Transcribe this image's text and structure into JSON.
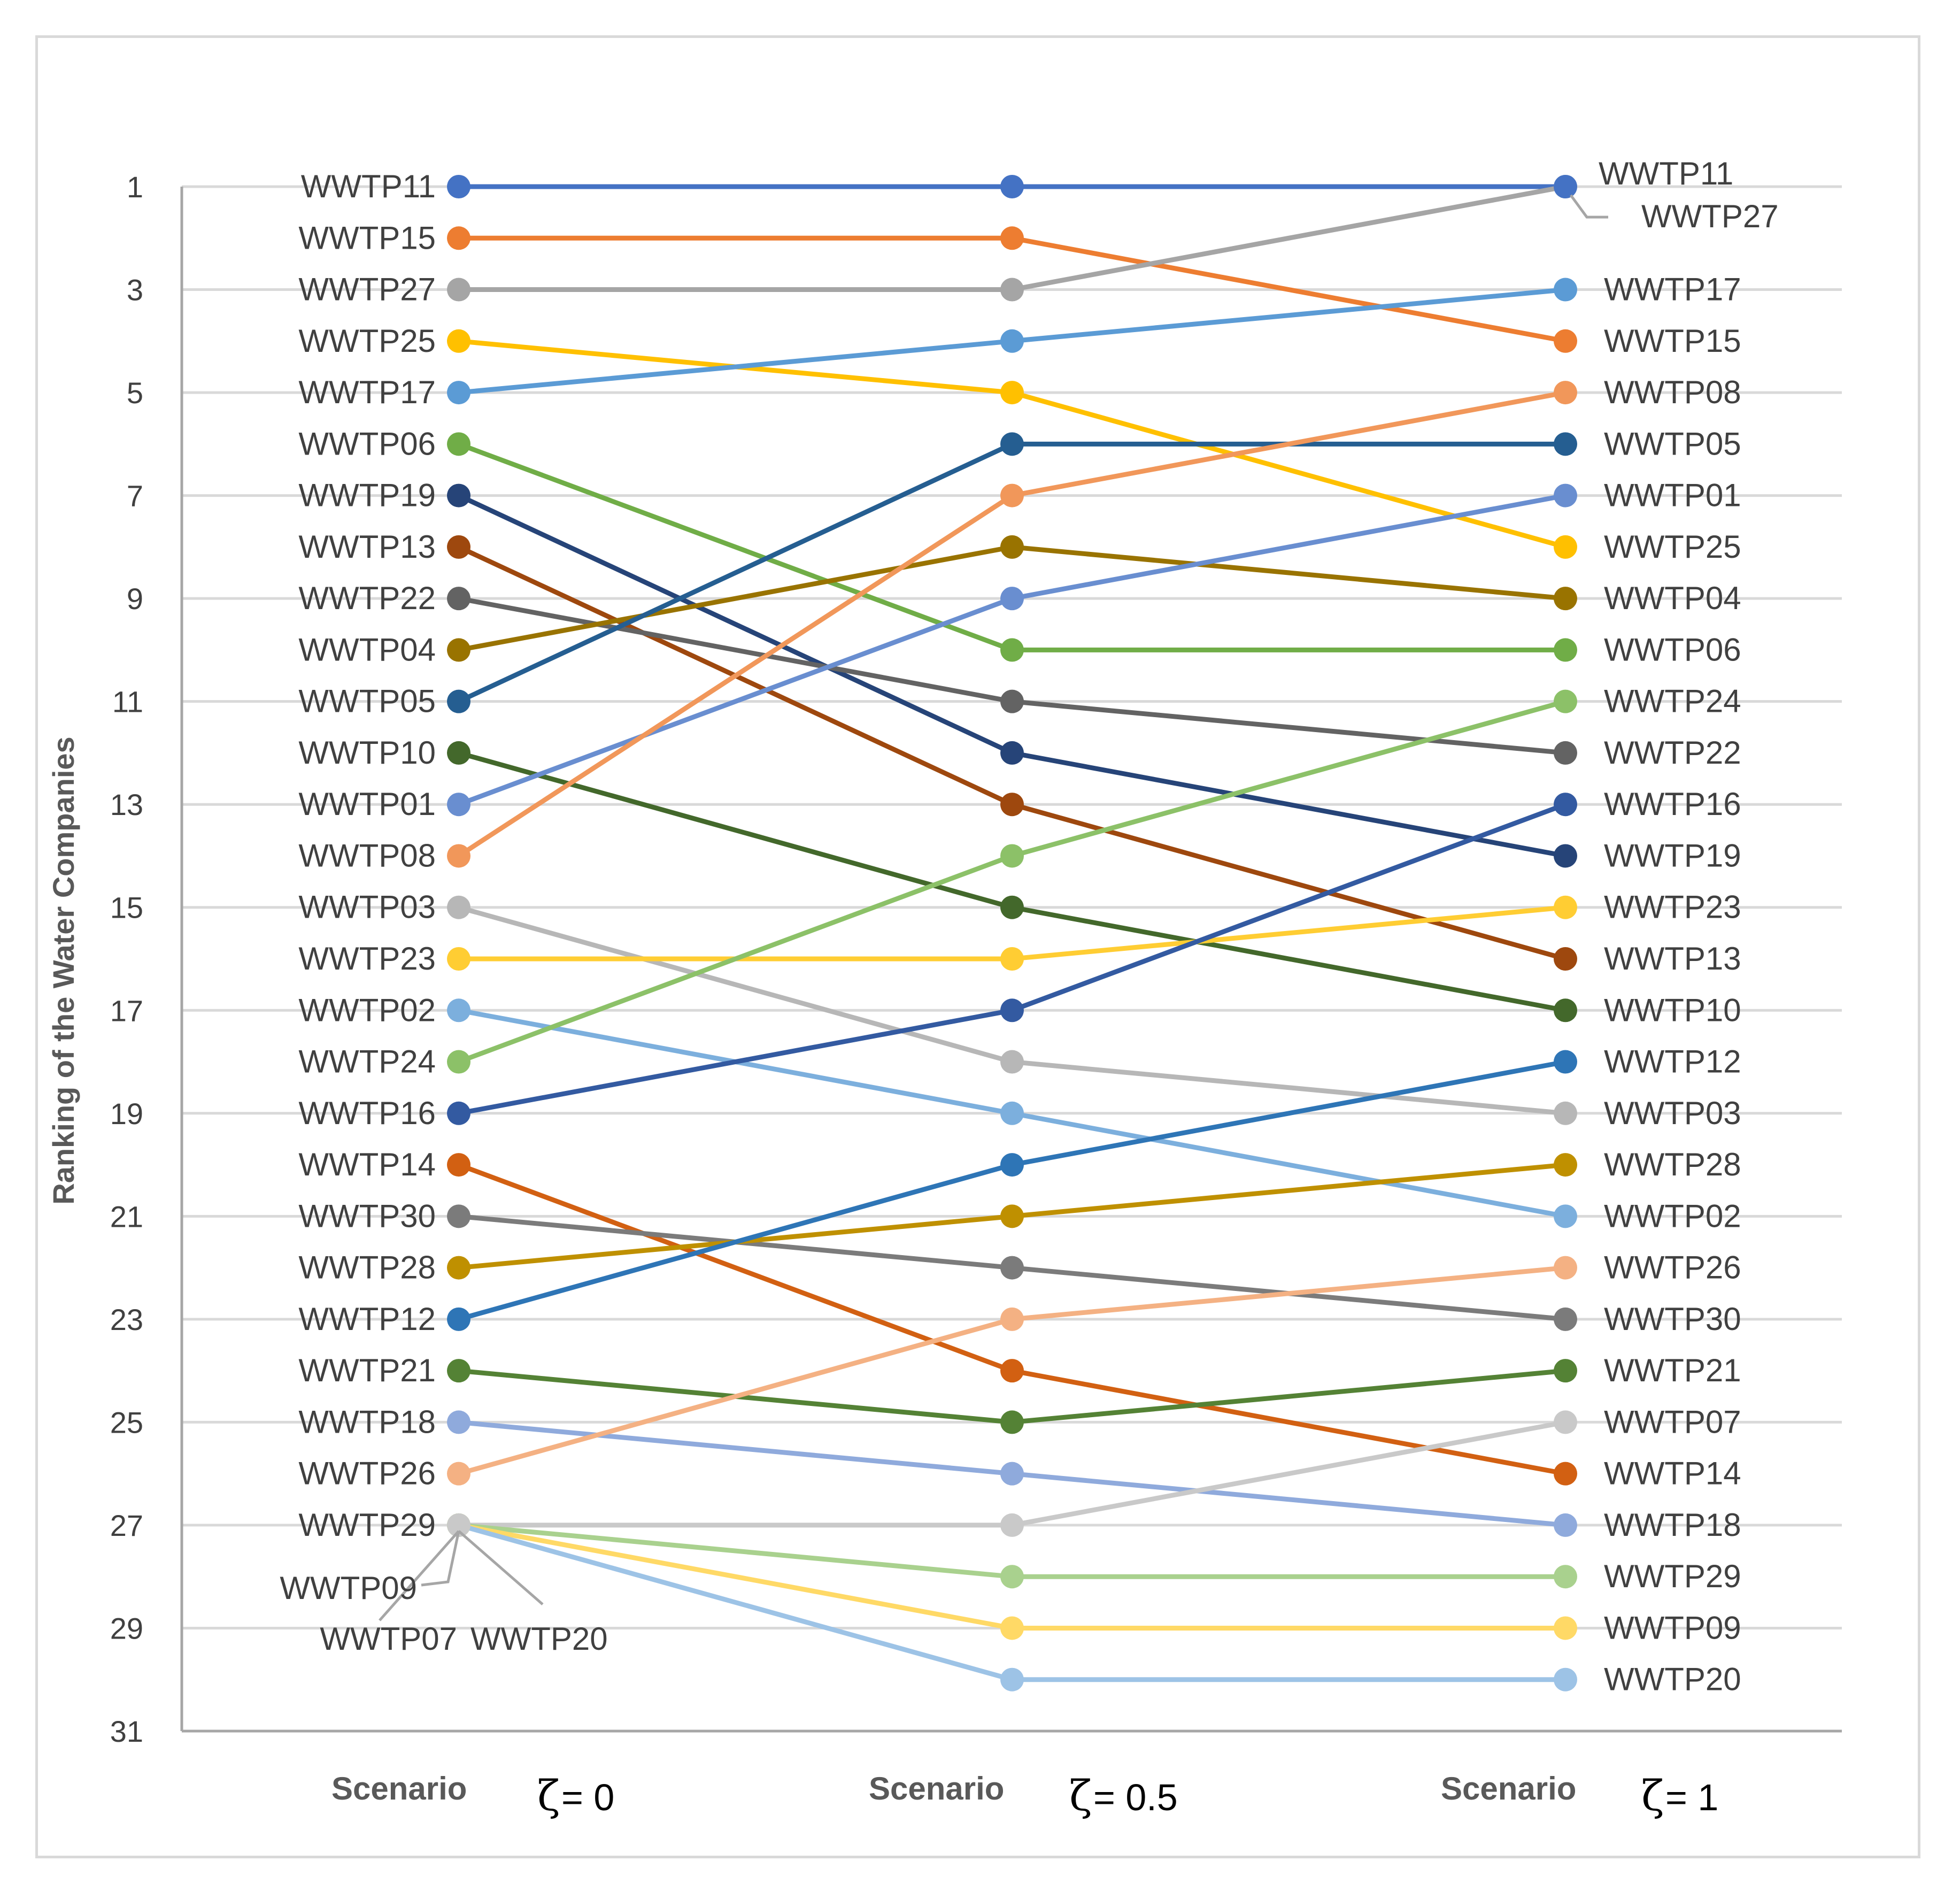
{
  "chart_data": {
    "type": "line",
    "ylabel": "Ranking of the Water Companies",
    "ylim": [
      1,
      31
    ],
    "y_inverted": true,
    "y_ticks": [
      1,
      3,
      5,
      7,
      9,
      11,
      13,
      15,
      17,
      19,
      21,
      23,
      25,
      27,
      29,
      31
    ],
    "grid": true,
    "scenarios": [
      {
        "word": "Scenario",
        "zeta": "ζ",
        "value": "= 0"
      },
      {
        "word": "Scenario",
        "zeta": "ζ",
        "value": "= 0.5"
      },
      {
        "word": "Scenario",
        "zeta": "ζ",
        "value": "= 1"
      }
    ],
    "series": [
      {
        "name": "WWTP11",
        "color": "#4472C4",
        "values": [
          1,
          1,
          1
        ]
      },
      {
        "name": "WWTP15",
        "color": "#ED7D31",
        "values": [
          2,
          2,
          4
        ]
      },
      {
        "name": "WWTP27",
        "color": "#A5A5A5",
        "values": [
          3,
          3,
          1
        ]
      },
      {
        "name": "WWTP25",
        "color": "#FFC000",
        "values": [
          4,
          5,
          8
        ]
      },
      {
        "name": "WWTP17",
        "color": "#5B9BD5",
        "values": [
          5,
          4,
          3
        ]
      },
      {
        "name": "WWTP06",
        "color": "#70AD47",
        "values": [
          6,
          10,
          10
        ]
      },
      {
        "name": "WWTP19",
        "color": "#264478",
        "values": [
          7,
          12,
          14
        ]
      },
      {
        "name": "WWTP13",
        "color": "#9E480E",
        "values": [
          8,
          13,
          16
        ]
      },
      {
        "name": "WWTP22",
        "color": "#636363",
        "values": [
          9,
          11,
          12
        ]
      },
      {
        "name": "WWTP04",
        "color": "#997300",
        "values": [
          10,
          8,
          9
        ]
      },
      {
        "name": "WWTP05",
        "color": "#255E91",
        "values": [
          11,
          6,
          6
        ]
      },
      {
        "name": "WWTP10",
        "color": "#43682B",
        "values": [
          12,
          15,
          17
        ]
      },
      {
        "name": "WWTP01",
        "color": "#698ED0",
        "values": [
          13,
          9,
          7
        ]
      },
      {
        "name": "WWTP08",
        "color": "#F1975A",
        "values": [
          14,
          7,
          5
        ]
      },
      {
        "name": "WWTP03",
        "color": "#B7B7B7",
        "values": [
          15,
          18,
          19
        ]
      },
      {
        "name": "WWTP23",
        "color": "#FFCD33",
        "values": [
          16,
          16,
          15
        ]
      },
      {
        "name": "WWTP02",
        "color": "#7CAFDD",
        "values": [
          17,
          19,
          21
        ]
      },
      {
        "name": "WWTP24",
        "color": "#8CC168",
        "values": [
          18,
          14,
          11
        ]
      },
      {
        "name": "WWTP16",
        "color": "#335AA1",
        "values": [
          19,
          17,
          13
        ]
      },
      {
        "name": "WWTP14",
        "color": "#D26012",
        "values": [
          20,
          24,
          26
        ]
      },
      {
        "name": "WWTP30",
        "color": "#7B7B7B",
        "values": [
          21,
          22,
          23
        ]
      },
      {
        "name": "WWTP28",
        "color": "#BF9000",
        "values": [
          22,
          21,
          20
        ]
      },
      {
        "name": "WWTP12",
        "color": "#2E75B6",
        "values": [
          23,
          20,
          18
        ]
      },
      {
        "name": "WWTP21",
        "color": "#548235",
        "values": [
          24,
          25,
          24
        ]
      },
      {
        "name": "WWTP18",
        "color": "#8FAADC",
        "values": [
          25,
          26,
          27
        ]
      },
      {
        "name": "WWTP26",
        "color": "#F4B183",
        "values": [
          26,
          23,
          22
        ]
      },
      {
        "name": "WWTP07",
        "color": "#C9C9C9",
        "values": [
          27,
          27,
          25
        ]
      },
      {
        "name": "WWTP29",
        "color": "#A9D18E",
        "values": [
          27,
          28,
          28
        ]
      },
      {
        "name": "WWTP09",
        "color": "#FFD966",
        "values": [
          27,
          29,
          29
        ]
      },
      {
        "name": "WWTP20",
        "color": "#9DC3E6",
        "values": [
          27,
          30,
          30
        ]
      }
    ]
  }
}
